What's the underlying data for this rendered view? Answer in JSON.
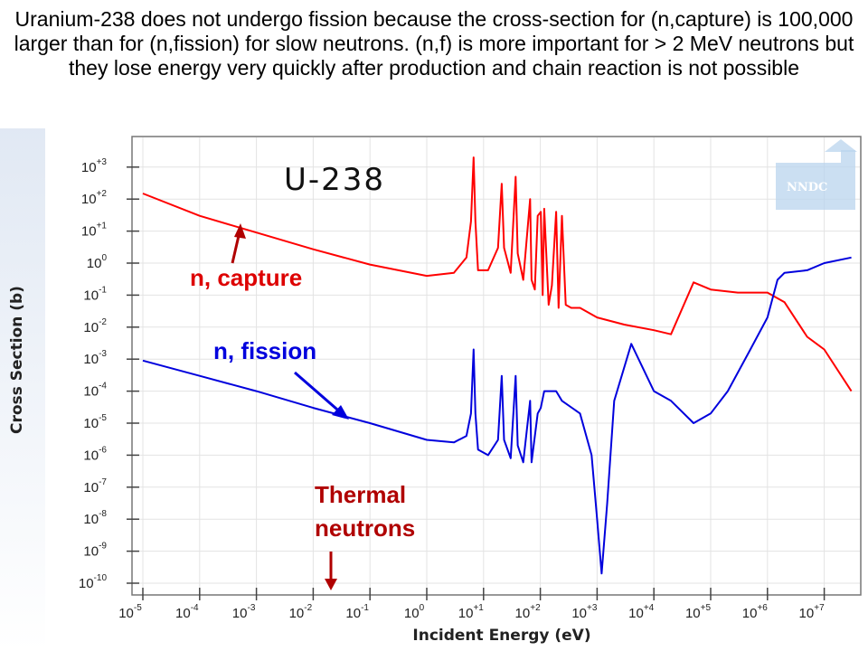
{
  "caption": "Uranium-238 does not undergo fission because the cross-section for (n,capture) is 100,000 larger than for (n,fission) for slow neutrons. (n,f) is more important for > 2 MeV neutrons but they lose energy very quickly after production and chain reaction is not possible",
  "logo_text": "NNDC",
  "colors": {
    "capture": "#ff0000",
    "fission": "#0000dd",
    "thermal": "#b00000",
    "grid": "#e3e3e3",
    "background": "#ffffff"
  },
  "chart_data": {
    "type": "line",
    "title": "U-238",
    "xlabel": "Incident Energy (eV)",
    "ylabel": "Cross Section (b)",
    "x_scale": "log",
    "y_scale": "log",
    "xlim": [
      1e-05,
      50000000
    ],
    "ylim": [
      1e-10,
      2000
    ],
    "grid": true,
    "x_ticks": [
      {
        "base": "10",
        "exp": "-5",
        "value": 1e-05
      },
      {
        "base": "10",
        "exp": "-4",
        "value": 0.0001
      },
      {
        "base": "10",
        "exp": "-3",
        "value": 0.001
      },
      {
        "base": "10",
        "exp": "-2",
        "value": 0.01
      },
      {
        "base": "10",
        "exp": "-1",
        "value": 0.1
      },
      {
        "base": "10",
        "exp": "0",
        "value": 1
      },
      {
        "base": "10",
        "exp": "+1",
        "value": 10
      },
      {
        "base": "10",
        "exp": "+2",
        "value": 100
      },
      {
        "base": "10",
        "exp": "+3",
        "value": 1000
      },
      {
        "base": "10",
        "exp": "+4",
        "value": 10000
      },
      {
        "base": "10",
        "exp": "+5",
        "value": 100000
      },
      {
        "base": "10",
        "exp": "+6",
        "value": 1000000
      },
      {
        "base": "10",
        "exp": "+7",
        "value": 10000000
      }
    ],
    "y_ticks": [
      {
        "base": "10",
        "exp": "+3",
        "value": 1000
      },
      {
        "base": "10",
        "exp": "+2",
        "value": 100
      },
      {
        "base": "10",
        "exp": "+1",
        "value": 10
      },
      {
        "base": "10",
        "exp": "0",
        "value": 1
      },
      {
        "base": "10",
        "exp": "-1",
        "value": 0.1
      },
      {
        "base": "10",
        "exp": "-2",
        "value": 0.01
      },
      {
        "base": "10",
        "exp": "-3",
        "value": 0.001
      },
      {
        "base": "10",
        "exp": "-4",
        "value": 0.0001
      },
      {
        "base": "10",
        "exp": "-5",
        "value": 1e-05
      },
      {
        "base": "10",
        "exp": "-6",
        "value": 1e-06
      },
      {
        "base": "10",
        "exp": "-7",
        "value": 1e-07
      },
      {
        "base": "10",
        "exp": "-8",
        "value": 1e-08
      },
      {
        "base": "10",
        "exp": "-9",
        "value": 1e-09
      },
      {
        "base": "10",
        "exp": "-10",
        "value": 1e-10
      }
    ],
    "series": [
      {
        "name": "n, capture",
        "color": "#ff0000",
        "points": [
          [
            1e-05,
            150
          ],
          [
            0.0001,
            30
          ],
          [
            0.001,
            9
          ],
          [
            0.01,
            2.7
          ],
          [
            0.1,
            0.9
          ],
          [
            1,
            0.4
          ],
          [
            3,
            0.5
          ],
          [
            5,
            1.5
          ],
          [
            6,
            20
          ],
          [
            6.67,
            2000
          ],
          [
            7.2,
            20
          ],
          [
            8,
            0.6
          ],
          [
            12,
            0.6
          ],
          [
            18,
            3
          ],
          [
            20.9,
            300
          ],
          [
            23,
            3
          ],
          [
            30,
            0.5
          ],
          [
            36.7,
            500
          ],
          [
            40,
            2
          ],
          [
            50,
            0.3
          ],
          [
            66,
            100
          ],
          [
            70,
            0.3
          ],
          [
            80,
            0.15
          ],
          [
            90,
            30
          ],
          [
            102,
            40
          ],
          [
            110,
            0.1
          ],
          [
            117,
            50
          ],
          [
            140,
            0.05
          ],
          [
            160,
            0.2
          ],
          [
            190,
            40
          ],
          [
            210,
            0.04
          ],
          [
            240,
            30
          ],
          [
            280,
            0.05
          ],
          [
            350,
            0.04
          ],
          [
            500,
            0.04
          ],
          [
            1000,
            0.02
          ],
          [
            3000,
            0.012
          ],
          [
            10000,
            0.008
          ],
          [
            20000,
            0.006
          ],
          [
            50000,
            0.25
          ],
          [
            100000,
            0.15
          ],
          [
            300000,
            0.12
          ],
          [
            1000000,
            0.12
          ],
          [
            2000000,
            0.06
          ],
          [
            5000000,
            0.005
          ],
          [
            10000000,
            0.002
          ],
          [
            30000000,
            0.0001
          ]
        ]
      },
      {
        "name": "n, fission",
        "color": "#0000dd",
        "points": [
          [
            1e-05,
            0.0009
          ],
          [
            0.0001,
            0.0003
          ],
          [
            0.001,
            0.0001
          ],
          [
            0.01,
            3e-05
          ],
          [
            0.1,
            1e-05
          ],
          [
            1,
            3e-06
          ],
          [
            3,
            2.5e-06
          ],
          [
            5,
            4e-06
          ],
          [
            6,
            2e-05
          ],
          [
            6.67,
            0.002
          ],
          [
            7.2,
            2e-05
          ],
          [
            8,
            1.5e-06
          ],
          [
            12,
            1e-06
          ],
          [
            18,
            3e-06
          ],
          [
            20.9,
            0.0003
          ],
          [
            23,
            3e-06
          ],
          [
            30,
            8e-07
          ],
          [
            36.7,
            0.0003
          ],
          [
            40,
            2e-06
          ],
          [
            50,
            6e-07
          ],
          [
            66,
            5e-05
          ],
          [
            70,
            6e-07
          ],
          [
            90,
            2e-05
          ],
          [
            102,
            3e-05
          ],
          [
            117,
            0.0001
          ],
          [
            190,
            0.0001
          ],
          [
            240,
            5e-05
          ],
          [
            500,
            2e-05
          ],
          [
            800,
            1e-06
          ],
          [
            1000,
            1e-08
          ],
          [
            1200,
            2e-10
          ],
          [
            1500,
            3e-08
          ],
          [
            2000,
            5e-05
          ],
          [
            4000,
            0.003
          ],
          [
            10000,
            0.0001
          ],
          [
            20000,
            5e-05
          ],
          [
            50000,
            1e-05
          ],
          [
            100000,
            2e-05
          ],
          [
            200000,
            0.0001
          ],
          [
            500000,
            0.002
          ],
          [
            1000000,
            0.02
          ],
          [
            1500000,
            0.3
          ],
          [
            2000000,
            0.5
          ],
          [
            5000000,
            0.6
          ],
          [
            10000000,
            1
          ],
          [
            30000000,
            1.5
          ]
        ]
      }
    ],
    "annotations": [
      {
        "text": "n, capture",
        "color": "#dd0000",
        "target": [
          0.0025,
          20
        ]
      },
      {
        "text": "n, fission",
        "color": "#0000dd",
        "target": [
          0.035,
          2e-05
        ]
      },
      {
        "text": "Thermal",
        "color": "#b00000"
      },
      {
        "text": "neutrons",
        "color": "#b00000",
        "target": [
          0.025,
          1e-10
        ]
      }
    ]
  }
}
